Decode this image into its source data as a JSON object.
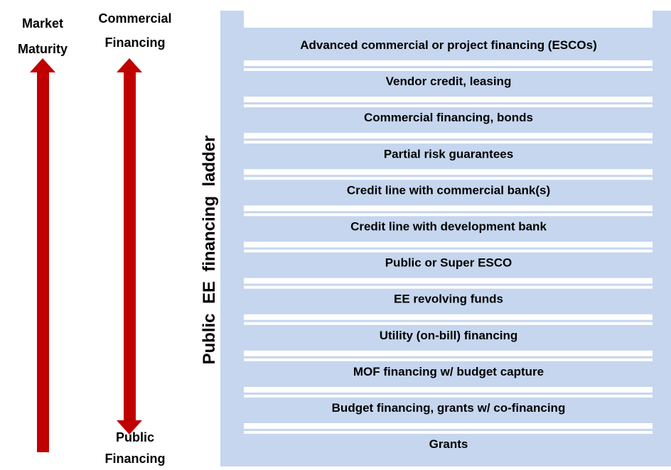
{
  "labels": {
    "market_maturity": [
      "Market",
      "Maturity"
    ],
    "commercial_financing": [
      "Commercial",
      "Financing"
    ],
    "public_financing": [
      "Public",
      "Financing"
    ]
  },
  "ladder": {
    "title": "Public  EE  financing  ladder",
    "rungs": [
      "Advanced commercial or project financing (ESCOs)",
      "Vendor credit, leasing",
      "Commercial financing, bonds",
      "Partial risk guarantees",
      "Credit line with commercial bank(s)",
      "Credit line with development bank",
      "Public or Super ESCO",
      "EE revolving funds",
      "Utility (on-bill) financing",
      "MOF financing w/ budget capture",
      "Budget financing, grants w/ co-financing",
      "Grants"
    ]
  }
}
